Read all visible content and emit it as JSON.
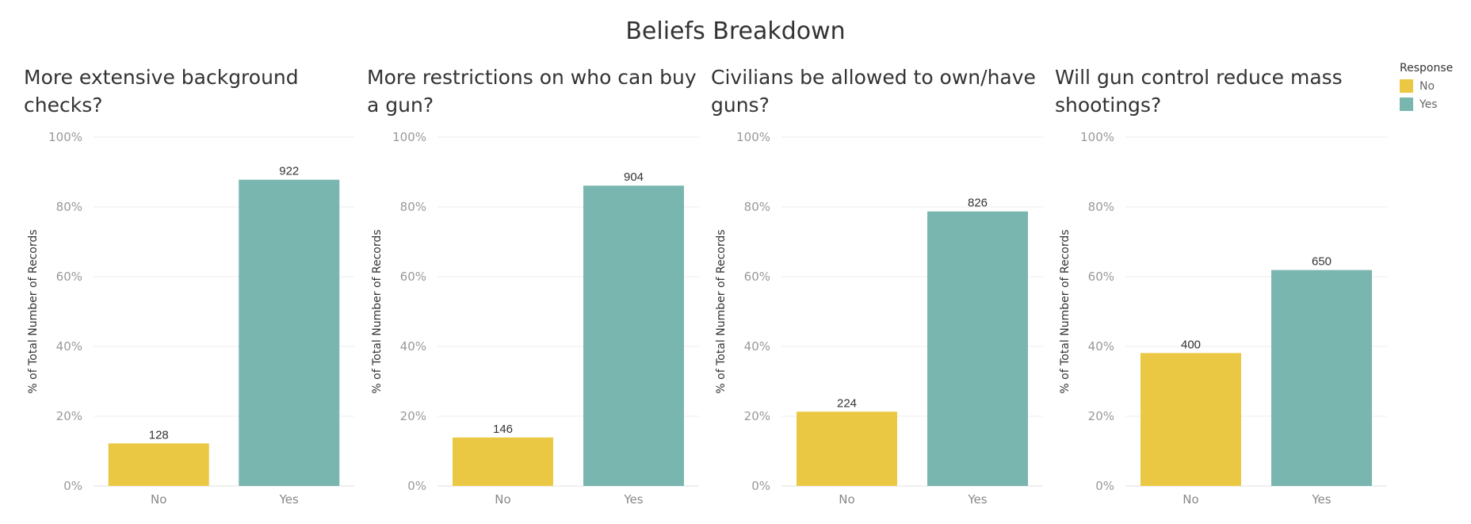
{
  "title": "Beliefs Breakdown",
  "legend": {
    "title": "Response",
    "items": [
      {
        "label": "No",
        "color": "#ebc844"
      },
      {
        "label": "Yes",
        "color": "#79b6b0"
      }
    ]
  },
  "chart_data": [
    {
      "type": "bar",
      "title": "More extensive background checks?",
      "ylabel": "% of Total Number of Records",
      "categories": [
        "No",
        "Yes"
      ],
      "values": [
        12.2,
        87.8
      ],
      "labels": [
        "128",
        "922"
      ],
      "ylim": [
        0,
        100
      ],
      "yticks": [
        "0%",
        "20%",
        "40%",
        "60%",
        "80%",
        "100%"
      ]
    },
    {
      "type": "bar",
      "title": "More restrictions on who can buy a gun?",
      "ylabel": "% of Total Number of Records",
      "categories": [
        "No",
        "Yes"
      ],
      "values": [
        13.9,
        86.1
      ],
      "labels": [
        "146",
        "904"
      ],
      "ylim": [
        0,
        100
      ],
      "yticks": [
        "0%",
        "20%",
        "40%",
        "60%",
        "80%",
        "100%"
      ]
    },
    {
      "type": "bar",
      "title": "Civilians be allowed to own/have guns?",
      "ylabel": "% of Total Number of Records",
      "categories": [
        "No",
        "Yes"
      ],
      "values": [
        21.3,
        78.7
      ],
      "labels": [
        "224",
        "826"
      ],
      "ylim": [
        0,
        100
      ],
      "yticks": [
        "0%",
        "20%",
        "40%",
        "60%",
        "80%",
        "100%"
      ]
    },
    {
      "type": "bar",
      "title": "Will gun control reduce mass shootings?",
      "ylabel": "% of Total Number of Records",
      "categories": [
        "No",
        "Yes"
      ],
      "values": [
        38.1,
        61.9
      ],
      "labels": [
        "400",
        "650"
      ],
      "ylim": [
        0,
        100
      ],
      "yticks": [
        "0%",
        "20%",
        "40%",
        "60%",
        "80%",
        "100%"
      ]
    }
  ]
}
